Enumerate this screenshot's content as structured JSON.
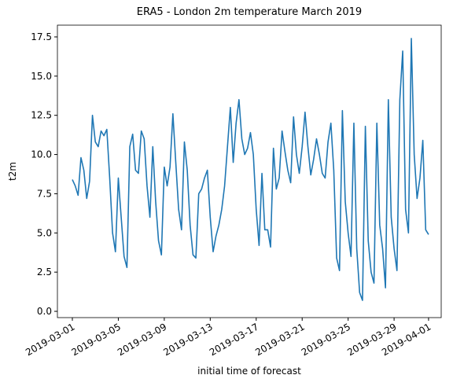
{
  "chart_data": {
    "type": "line",
    "title": "ERA5 - London 2m temperature March 2019",
    "xlabel": "initial time of forecast",
    "ylabel": "t2m",
    "color": "#1f77b4",
    "grid": false,
    "x": [
      0,
      0.25,
      0.5,
      0.75,
      1,
      1.25,
      1.5,
      1.75,
      2,
      2.25,
      2.5,
      2.75,
      3,
      3.25,
      3.5,
      3.75,
      4,
      4.25,
      4.5,
      4.75,
      5,
      5.25,
      5.5,
      5.75,
      6,
      6.25,
      6.5,
      6.75,
      7,
      7.25,
      7.5,
      7.75,
      8,
      8.25,
      8.5,
      8.75,
      9,
      9.25,
      9.5,
      9.75,
      10,
      10.25,
      10.5,
      10.75,
      11,
      11.25,
      11.5,
      11.75,
      12,
      12.25,
      12.5,
      12.75,
      13,
      13.25,
      13.5,
      13.75,
      14,
      14.25,
      14.5,
      14.75,
      15,
      15.25,
      15.5,
      15.75,
      16,
      16.25,
      16.5,
      16.75,
      17,
      17.25,
      17.5,
      17.75,
      18,
      18.25,
      18.5,
      18.75,
      19,
      19.25,
      19.5,
      19.75,
      20,
      20.25,
      20.5,
      20.75,
      21,
      21.25,
      21.5,
      21.75,
      22,
      22.25,
      22.5,
      22.75,
      23,
      23.25,
      23.5,
      23.75,
      24,
      24.25,
      24.5,
      24.75,
      25,
      25.25,
      25.5,
      25.75,
      26,
      26.25,
      26.5,
      26.75,
      27,
      27.25,
      27.5,
      27.75,
      28,
      28.25,
      28.5,
      28.75,
      29,
      29.25,
      29.5,
      29.75,
      30,
      30.25,
      30.5,
      30.75,
      31
    ],
    "values": [
      8.4,
      8.0,
      7.4,
      9.8,
      9.0,
      7.2,
      8.3,
      12.5,
      10.8,
      10.5,
      11.5,
      11.2,
      11.6,
      8.5,
      5.0,
      3.8,
      8.5,
      6.0,
      3.5,
      2.8,
      10.5,
      11.3,
      9.0,
      8.8,
      11.5,
      11.0,
      8.0,
      6.0,
      10.5,
      7.0,
      4.5,
      3.6,
      9.2,
      8.0,
      9.2,
      12.6,
      9.5,
      6.5,
      5.2,
      10.8,
      9.0,
      5.5,
      3.6,
      3.4,
      7.5,
      7.8,
      8.5,
      9.0,
      6.0,
      3.8,
      4.8,
      5.5,
      6.5,
      8.0,
      10.5,
      13.0,
      9.5,
      12.0,
      13.5,
      11.0,
      10.0,
      10.4,
      11.4,
      10.0,
      6.5,
      4.2,
      8.8,
      5.2,
      5.2,
      4.1,
      10.4,
      7.8,
      8.5,
      11.5,
      10.2,
      9.0,
      8.2,
      12.4,
      10.0,
      8.8,
      10.5,
      12.7,
      10.5,
      8.7,
      9.7,
      11.0,
      10.0,
      8.8,
      8.5,
      10.8,
      12.0,
      9.0,
      3.4,
      2.6,
      12.8,
      7.0,
      5.0,
      3.5,
      12.0,
      4.0,
      1.2,
      0.7,
      11.8,
      4.5,
      2.5,
      1.8,
      12.0,
      5.5,
      4.0,
      1.5,
      13.5,
      6.0,
      4.0,
      2.6,
      13.5,
      16.6,
      6.5,
      5.0,
      17.4,
      10.0,
      7.2,
      8.5,
      10.9,
      5.2,
      4.9
    ],
    "xlim": [
      -1.3,
      32.1
    ],
    "xticks": [
      {
        "value": 0,
        "label": "2019-03-01"
      },
      {
        "value": 4,
        "label": "2019-03-05"
      },
      {
        "value": 8,
        "label": "2019-03-09"
      },
      {
        "value": 12,
        "label": "2019-03-13"
      },
      {
        "value": 16,
        "label": "2019-03-17"
      },
      {
        "value": 20,
        "label": "2019-03-21"
      },
      {
        "value": 24,
        "label": "2019-03-25"
      },
      {
        "value": 28,
        "label": "2019-03-29"
      },
      {
        "value": 31,
        "label": "2019-04-01"
      }
    ],
    "ylim": [
      -0.4,
      18.25
    ],
    "yticks": [
      {
        "value": 0,
        "label": "0.0"
      },
      2.5,
      {
        "value": 5,
        "label": "5.0"
      },
      7.5,
      {
        "value": 10,
        "label": "10.0"
      },
      12.5,
      {
        "value": 15,
        "label": "15.0"
      },
      17.5
    ]
  }
}
